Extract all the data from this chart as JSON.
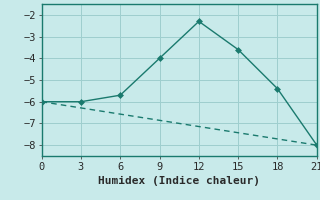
{
  "line1_x": [
    0,
    3,
    6,
    9,
    12,
    15,
    18,
    21
  ],
  "line1_y": [
    -6.0,
    -6.0,
    -5.7,
    -4.0,
    -2.3,
    -3.6,
    -5.4,
    -8.0
  ],
  "line2_x": [
    0,
    21
  ],
  "line2_y": [
    -6.0,
    -8.0
  ],
  "line_color": "#1a7a6e",
  "bg_color": "#c8eaea",
  "grid_color": "#9ecece",
  "xlabel": "Humidex (Indice chaleur)",
  "xlim": [
    0,
    21
  ],
  "ylim": [
    -8.5,
    -1.5
  ],
  "xticks": [
    0,
    3,
    6,
    9,
    12,
    15,
    18,
    21
  ],
  "yticks": [
    -8,
    -7,
    -6,
    -5,
    -4,
    -3,
    -2
  ],
  "marker": "D",
  "marker_size": 3,
  "line_width": 1.0,
  "tick_fontsize": 7.5,
  "xlabel_fontsize": 8.0
}
